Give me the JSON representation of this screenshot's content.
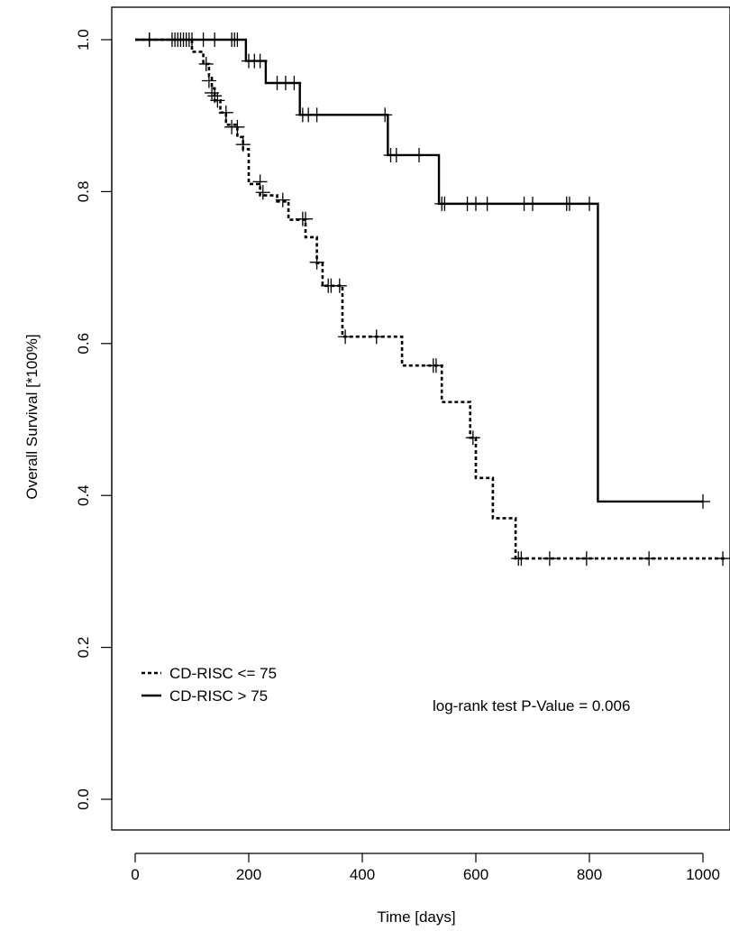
{
  "chart_data": {
    "type": "line",
    "title": "",
    "xlabel": "Time [days]",
    "ylabel": "Overall Survival [*100%]",
    "xlim": [
      0,
      1040
    ],
    "ylim": [
      0,
      1.0
    ],
    "x_ticks": [
      "0",
      "200",
      "400",
      "600",
      "800",
      "1000"
    ],
    "y_ticks": [
      "0.0",
      "0.2",
      "0.4",
      "0.6",
      "0.8",
      "1.0"
    ],
    "grid": false,
    "legend_position": "bottom-left",
    "annotation": "log-rank test P-Value = 0.006",
    "series": [
      {
        "name": "CD-RISC <= 75",
        "line_style": "dotted",
        "steps": [
          [
            0,
            1.0
          ],
          [
            100,
            0.984
          ],
          [
            120,
            0.968
          ],
          [
            130,
            0.952
          ],
          [
            135,
            0.936
          ],
          [
            140,
            0.92
          ],
          [
            150,
            0.904
          ],
          [
            160,
            0.888
          ],
          [
            180,
            0.872
          ],
          [
            190,
            0.856
          ],
          [
            200,
            0.81
          ],
          [
            220,
            0.795
          ],
          [
            250,
            0.787
          ],
          [
            270,
            0.763
          ],
          [
            300,
            0.74
          ],
          [
            320,
            0.706
          ],
          [
            330,
            0.676
          ],
          [
            365,
            0.609
          ],
          [
            470,
            0.571
          ],
          [
            540,
            0.523
          ],
          [
            590,
            0.476
          ],
          [
            600,
            0.423
          ],
          [
            630,
            0.37
          ],
          [
            670,
            0.317
          ],
          [
            1040,
            0.317
          ]
        ],
        "censor_marks": [
          [
            25,
            1.0
          ],
          [
            70,
            1.0
          ],
          [
            85,
            1.0
          ],
          [
            95,
            1.0
          ],
          [
            125,
            0.968
          ],
          [
            130,
            0.946
          ],
          [
            135,
            0.93
          ],
          [
            140,
            0.926
          ],
          [
            145,
            0.92
          ],
          [
            160,
            0.904
          ],
          [
            170,
            0.885
          ],
          [
            180,
            0.885
          ],
          [
            190,
            0.862
          ],
          [
            220,
            0.813
          ],
          [
            225,
            0.799
          ],
          [
            260,
            0.789
          ],
          [
            295,
            0.764
          ],
          [
            300,
            0.764
          ],
          [
            320,
            0.707
          ],
          [
            340,
            0.676
          ],
          [
            345,
            0.676
          ],
          [
            360,
            0.676
          ],
          [
            370,
            0.609
          ],
          [
            425,
            0.609
          ],
          [
            525,
            0.571
          ],
          [
            530,
            0.571
          ],
          [
            595,
            0.476
          ],
          [
            675,
            0.317
          ],
          [
            680,
            0.317
          ],
          [
            730,
            0.317
          ],
          [
            795,
            0.317
          ],
          [
            905,
            0.317
          ],
          [
            1035,
            0.317
          ]
        ]
      },
      {
        "name": "CD-RISC > 75",
        "line_style": "solid",
        "steps": [
          [
            0,
            1.0
          ],
          [
            195,
            0.972
          ],
          [
            230,
            0.943
          ],
          [
            290,
            0.901
          ],
          [
            445,
            0.848
          ],
          [
            535,
            0.784
          ],
          [
            815,
            0.392
          ],
          [
            1000,
            0.392
          ]
        ],
        "censor_marks": [
          [
            25,
            1.0
          ],
          [
            65,
            1.0
          ],
          [
            75,
            1.0
          ],
          [
            80,
            1.0
          ],
          [
            90,
            1.0
          ],
          [
            100,
            1.0
          ],
          [
            120,
            1.0
          ],
          [
            140,
            1.0
          ],
          [
            170,
            1.0
          ],
          [
            175,
            1.0
          ],
          [
            180,
            1.0
          ],
          [
            200,
            0.972
          ],
          [
            210,
            0.972
          ],
          [
            220,
            0.972
          ],
          [
            250,
            0.943
          ],
          [
            265,
            0.943
          ],
          [
            280,
            0.943
          ],
          [
            295,
            0.901
          ],
          [
            305,
            0.901
          ],
          [
            320,
            0.901
          ],
          [
            440,
            0.901
          ],
          [
            450,
            0.848
          ],
          [
            460,
            0.848
          ],
          [
            500,
            0.848
          ],
          [
            540,
            0.784
          ],
          [
            545,
            0.784
          ],
          [
            585,
            0.784
          ],
          [
            600,
            0.784
          ],
          [
            620,
            0.784
          ],
          [
            685,
            0.784
          ],
          [
            700,
            0.784
          ],
          [
            760,
            0.784
          ],
          [
            765,
            0.784
          ],
          [
            800,
            0.784
          ],
          [
            1000,
            0.392
          ]
        ]
      }
    ]
  }
}
